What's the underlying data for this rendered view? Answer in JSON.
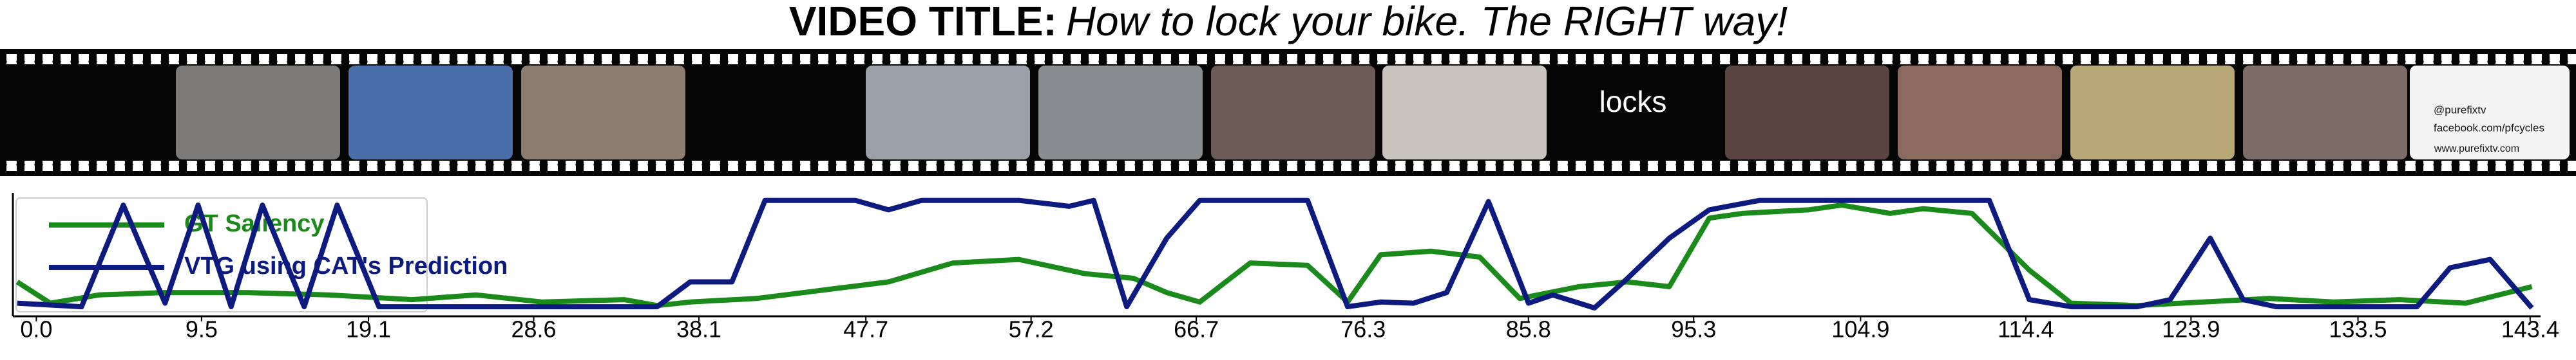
{
  "header": {
    "label": "VIDEO TITLE:",
    "title": "How to lock your bike. The RIGHT way!"
  },
  "filmstrip": {
    "frame_text": "locks",
    "end_card": [
      "@purefixtv",
      "facebook.com/pfcycles",
      "www.purefixtv.com"
    ]
  },
  "chart_data": {
    "type": "line",
    "xlim": [
      -1.2,
      144.0
    ],
    "ylim": [
      0,
      1.05
    ],
    "xticks": [
      {
        "value": 0,
        "label": "0.0"
      },
      9.5,
      19.1,
      28.6,
      38.1,
      47.7,
      57.2,
      66.7,
      76.3,
      85.8,
      95.3,
      104.9,
      114.4,
      123.9,
      133.5,
      143.4
    ],
    "legend": "upper left",
    "series": [
      {
        "name": "GT Saliency",
        "color": "#1a8a1a",
        "x": [
          -1.1,
          0.8,
          3.6,
          7.4,
          12.1,
          16.8,
          21.6,
          25.3,
          29.1,
          33.8,
          35.7,
          37.6,
          41.4,
          45.2,
          49.0,
          52.7,
          56.5,
          60.3,
          63.1,
          65.0,
          66.9,
          69.8,
          73.1,
          75.4,
          77.3,
          80.2,
          83.0,
          85.3,
          88.7,
          91.5,
          93.9,
          96.2,
          98.1,
          101.9,
          103.8,
          106.6,
          108.5,
          111.3,
          114.6,
          117.0,
          120.8,
          124.6,
          128.4,
          132.1,
          135.9,
          139.7,
          143.5
        ],
        "values": [
          0.28,
          0.1,
          0.17,
          0.19,
          0.19,
          0.17,
          0.13,
          0.17,
          0.11,
          0.13,
          0.08,
          0.11,
          0.14,
          0.21,
          0.28,
          0.44,
          0.47,
          0.35,
          0.31,
          0.19,
          0.11,
          0.44,
          0.42,
          0.11,
          0.51,
          0.54,
          0.49,
          0.14,
          0.24,
          0.28,
          0.24,
          0.82,
          0.86,
          0.89,
          0.93,
          0.86,
          0.9,
          0.86,
          0.38,
          0.1,
          0.08,
          0.11,
          0.14,
          0.11,
          0.13,
          0.1,
          0.24
        ]
      },
      {
        "name": "VTG using CAT's Prediction",
        "color": "#0d1a80",
        "x": [
          -1.1,
          2.6,
          5.0,
          7.4,
          9.3,
          11.2,
          13.0,
          15.4,
          17.3,
          19.7,
          22.5,
          35.7,
          37.6,
          40.0,
          41.9,
          47.1,
          49.0,
          50.9,
          56.5,
          59.4,
          60.8,
          62.7,
          65.0,
          66.9,
          73.1,
          75.4,
          77.3,
          79.2,
          81.1,
          83.5,
          85.8,
          87.2,
          89.6,
          91.5,
          93.9,
          96.2,
          99.1,
          103.8,
          112.3,
          114.6,
          117.0,
          120.8,
          122.7,
          125.0,
          126.9,
          128.8,
          136.9,
          138.8,
          141.1,
          143.5
        ],
        "values": [
          0.1,
          0.07,
          0.93,
          0.1,
          0.93,
          0.07,
          0.93,
          0.07,
          0.93,
          0.07,
          0.07,
          0.07,
          0.28,
          0.28,
          0.97,
          0.97,
          0.89,
          0.97,
          0.97,
          0.92,
          0.97,
          0.07,
          0.65,
          0.97,
          0.97,
          0.07,
          0.11,
          0.1,
          0.19,
          0.96,
          0.1,
          0.17,
          0.06,
          0.31,
          0.65,
          0.89,
          0.97,
          0.97,
          0.97,
          0.13,
          0.07,
          0.07,
          0.13,
          0.65,
          0.13,
          0.07,
          0.07,
          0.4,
          0.47,
          0.06
        ]
      }
    ]
  }
}
